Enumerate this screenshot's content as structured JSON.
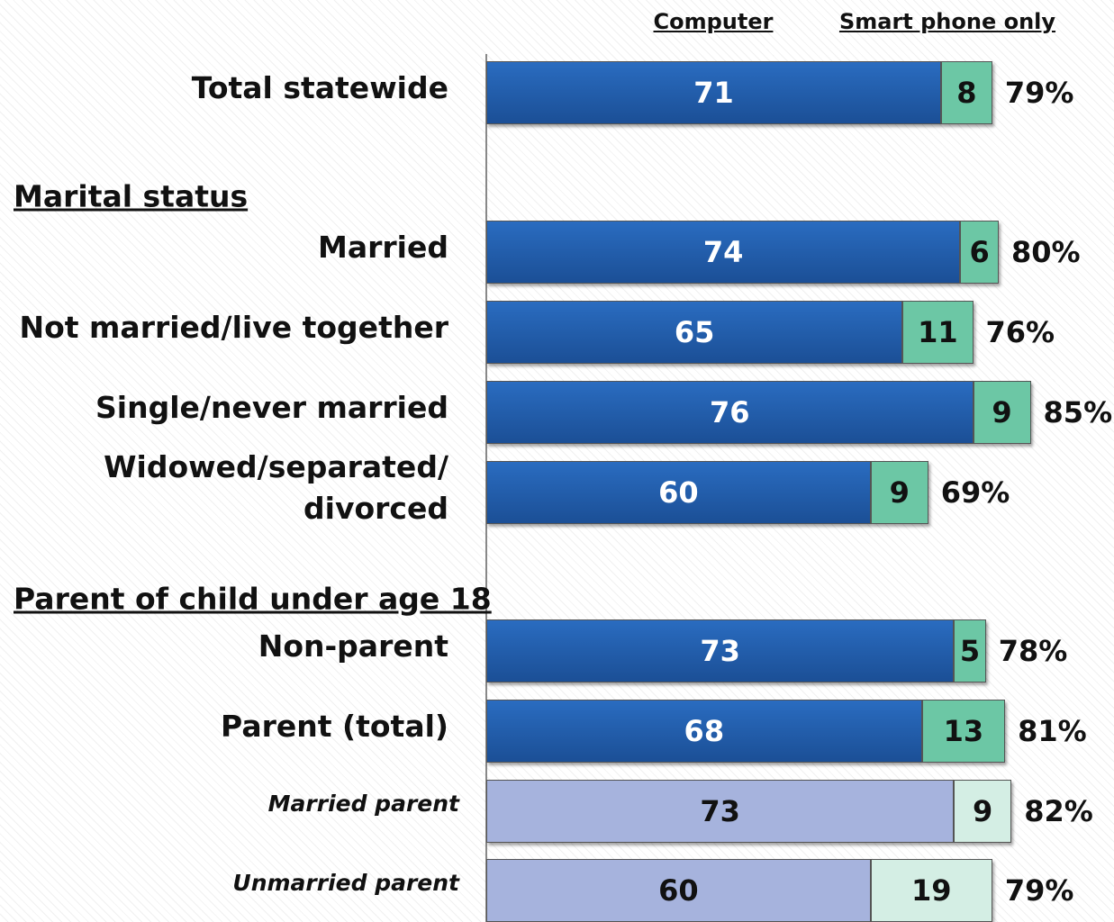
{
  "chart_data": {
    "type": "stacked-bar-horizontal",
    "categories": [
      "Total statewide",
      "Married",
      "Not married/live together",
      "Single/never married",
      "Widowed/separated/\ndivorced",
      "Non-parent",
      "Parent (total)",
      "Married parent",
      "Unmarried parent"
    ],
    "italic_categories": [
      false,
      false,
      false,
      false,
      false,
      false,
      false,
      true,
      true
    ],
    "group_headers": [
      "Marital status",
      "Parent of child under age 18"
    ],
    "series": [
      {
        "name": "Computer",
        "color": "#1f5ca8",
        "colors": [
          "#1f5ca8",
          "#1f5ca8",
          "#1f5ca8",
          "#1f5ca8",
          "#1f5ca8",
          "#1f5ca8",
          "#1f5ca8",
          "#a6b3dd",
          "#a6b3dd"
        ],
        "text_colors": [
          "#ffffff",
          "#ffffff",
          "#ffffff",
          "#ffffff",
          "#ffffff",
          "#ffffff",
          "#ffffff",
          "#111111",
          "#111111"
        ],
        "values": [
          71,
          74,
          65,
          76,
          60,
          73,
          68,
          73,
          60
        ]
      },
      {
        "name": "Smart phone only",
        "color": "#6cc7a5",
        "colors": [
          "#6cc7a5",
          "#6cc7a5",
          "#6cc7a5",
          "#6cc7a5",
          "#6cc7a5",
          "#6cc7a5",
          "#6cc7a5",
          "#d4eee4",
          "#d4eee4"
        ],
        "text_colors": [
          "#111111",
          "#111111",
          "#111111",
          "#111111",
          "#111111",
          "#111111",
          "#111111",
          "#111111",
          "#111111"
        ],
        "values": [
          8,
          6,
          11,
          9,
          9,
          5,
          13,
          9,
          19
        ]
      }
    ],
    "totals": {
      "values": [
        79,
        80,
        76,
        85,
        69,
        78,
        81,
        82,
        79
      ],
      "value_labels": [
        "79%",
        "80%",
        "76%",
        "85%",
        "69%",
        "78%",
        "81%",
        "82%",
        "79%"
      ]
    },
    "xlim": [
      0,
      98
    ]
  }
}
